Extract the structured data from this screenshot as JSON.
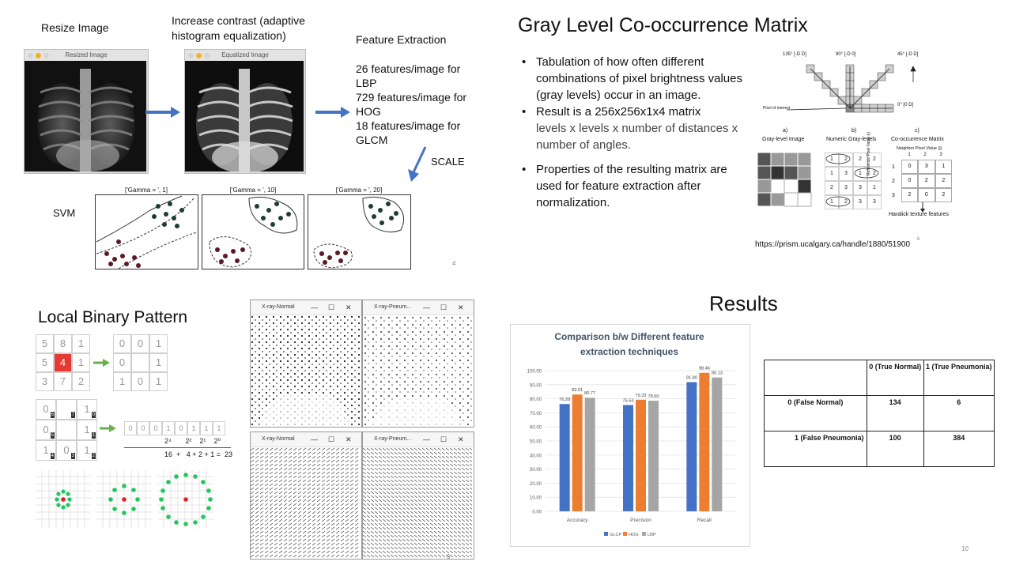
{
  "panel_tl": {
    "resize_label": "Resize Image",
    "contrast_label": "Increase contrast (adaptive histogram equalization)",
    "feature_title": "Feature Extraction",
    "feature_lines": [
      "26 features/image for LBP",
      "729 features/image for HOG",
      "18 features/image for GLCM"
    ],
    "scale_label": "SCALE",
    "svm_label": "SVM",
    "win1_title": "Resized Image",
    "win2_title": "Equalized Image",
    "gamma_titles": [
      "['Gamma = ', 1]",
      "['Gamma = ', 10]",
      "['Gamma = ', 20]"
    ],
    "page_num": "4"
  },
  "panel_tr": {
    "title": "Gray Level Co-occurrence Matrix",
    "bullet1": "Tabulation of how often different combinations of pixel brightness values (gray levels) occur in an image.",
    "bullet2_a": "Result is a 256x256x1x4 matrix",
    "bullet2_b": "levels x levels x number of distances x number of angles.",
    "bullet3": "Properties of the resulting matrix are used for feature extraction after normalization.",
    "angles": [
      "135° [-D D]",
      "90° [-D 0]",
      "45° [-D D]",
      "0° [0 D]"
    ],
    "pixel_interest": "Pixel of interest",
    "sub_a": "a)",
    "sub_b": "b)",
    "sub_c": "c)",
    "cap_a": "Gray-level Image",
    "cap_b": "Numeric Gray-levels",
    "cap_c": "Co-occurrence Matrix",
    "neighbor": "Neighbor Pixel Value (j)",
    "reference": "Reference Pixel Value (i)",
    "numeric_grid": [
      [
        "1",
        "2",
        "2",
        "2"
      ],
      [
        "1",
        "3",
        "1",
        "2"
      ],
      [
        "2",
        "3",
        "3",
        "1"
      ],
      [
        "1",
        "2",
        "3",
        "3"
      ]
    ],
    "cooc_header": [
      "1",
      "2",
      "3"
    ],
    "cooc_rows": [
      [
        "1",
        "0",
        "3",
        "1"
      ],
      [
        "2",
        "0",
        "2",
        "2"
      ],
      [
        "3",
        "2",
        "0",
        "2"
      ]
    ],
    "haralick": "Haralick texture features",
    "url": "https://prism.ucalgary.ca/handle/1880/51900",
    "page_num": "6"
  },
  "panel_bl": {
    "title": "Local Binary Pattern",
    "grid_a": [
      "5",
      "8",
      "1",
      "5",
      "4",
      "1",
      "3",
      "7",
      "2"
    ],
    "grid_b": [
      "0",
      "0",
      "1",
      "0",
      "",
      "1",
      "1",
      "0",
      "1"
    ],
    "grid_c": [
      "0",
      "7",
      "1",
      "0",
      "",
      "1",
      "1",
      "0",
      "1"
    ],
    "grid_c_tags": [
      "6",
      "7",
      "0",
      "5",
      "",
      "1",
      "4",
      "3",
      "2"
    ],
    "binary": [
      "0",
      "0",
      "0",
      "1",
      "0",
      "1",
      "1",
      "1"
    ],
    "powers": [
      "2⁴",
      "2²",
      "2¹",
      "2⁰"
    ],
    "sum": "16  +   4 + 2 + 1 =  23",
    "xwin_titles": [
      "X-ray-Normal",
      "X-ray-Pneum...",
      "X-ray-Normal",
      "X-ray-Pneum..."
    ],
    "page_num": "6"
  },
  "panel_br": {
    "title": "Results",
    "table_header": [
      "",
      "0 (True Normal)",
      "1 (True Pneumonia)"
    ],
    "table_rows": [
      [
        "0 (False Normal)",
        "134",
        "6"
      ],
      [
        "1 (False Pneumonia)",
        "100",
        "384"
      ]
    ],
    "page_num": "10"
  },
  "chart_data": {
    "type": "bar",
    "title": "Comparison b/w Different feature extraction techniques",
    "categories": [
      "Accuracy",
      "Precision",
      "Recall"
    ],
    "series": [
      {
        "name": "GLCP",
        "values": [
          76.28,
          75.53,
          91.8
        ],
        "color": "#4472c4"
      },
      {
        "name": "HOG",
        "values": [
          83.01,
          79.33,
          98.46
        ],
        "color": "#ed7d31"
      },
      {
        "name": "LBP",
        "values": [
          80.77,
          78.6,
          95.13
        ],
        "color": "#a5a5a5"
      }
    ],
    "value_labels": [
      [
        "76.28",
        "75.53",
        "91.80"
      ],
      [
        "83.01",
        "79.33",
        "98.46"
      ],
      [
        "80.77",
        "78.60",
        "95.13"
      ]
    ],
    "ylim": [
      0,
      100
    ],
    "yticks": [
      "0.00",
      "10.00",
      "20.00",
      "30.00",
      "40.00",
      "50.00",
      "60.00",
      "70.00",
      "80.00",
      "90.00",
      "100.00"
    ],
    "legend": "bottom",
    "grid": true
  }
}
